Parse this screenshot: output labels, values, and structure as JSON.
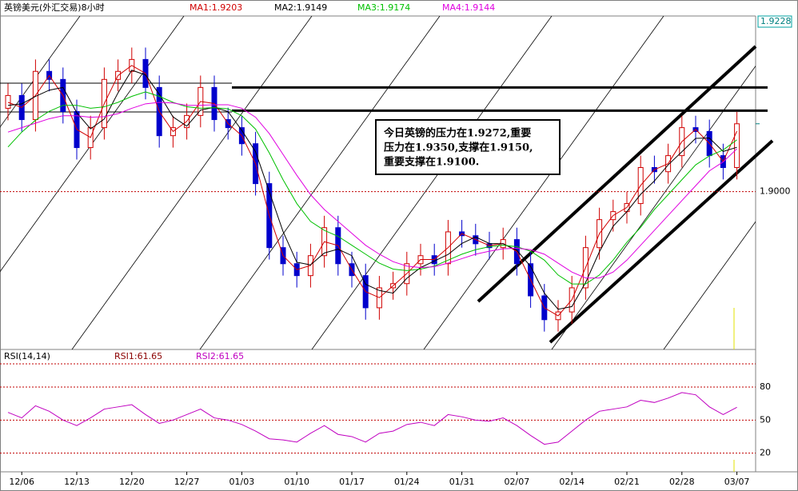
{
  "chart_data": [
    {
      "type": "candlestick",
      "title": "英镑美元(外汇交易)8小时",
      "categories": [
        null,
        "12/06",
        null,
        null,
        null,
        "12/13",
        null,
        null,
        null,
        "12/20",
        null,
        null,
        null,
        "12/27",
        null,
        null,
        null,
        "01/03",
        null,
        null,
        null,
        "01/10",
        null,
        null,
        null,
        "01/17",
        null,
        null,
        null,
        "01/24",
        null,
        null,
        null,
        "01/31",
        null,
        null,
        null,
        "02/07",
        null,
        null,
        null,
        "02/14",
        null,
        null,
        null,
        "02/21",
        null,
        null,
        null,
        "02/28",
        null,
        null,
        null,
        "03/07"
      ],
      "open": [
        1.928,
        1.9323,
        1.9242,
        1.9404,
        1.9377,
        1.9269,
        1.9148,
        1.9215,
        1.9377,
        1.9404,
        1.9444,
        1.935,
        1.9188,
        1.9215,
        1.9256,
        1.935,
        1.9242,
        1.9215,
        1.9161,
        1.9027,
        1.8812,
        1.8758,
        1.8718,
        1.8785,
        1.8879,
        1.8758,
        1.8718,
        1.861,
        1.8677,
        1.8691,
        1.8758,
        1.8785,
        1.8758,
        1.8865,
        1.8852,
        1.8825,
        1.8812,
        1.8839,
        1.8758,
        1.865,
        1.857,
        1.8596,
        1.8677,
        1.8812,
        1.8906,
        1.8933,
        1.896,
        1.9081,
        1.9067,
        1.9121,
        1.9215,
        1.9202,
        1.9121,
        1.9081
      ],
      "high": [
        1.9363,
        1.9363,
        1.9444,
        1.9444,
        1.9417,
        1.9309,
        1.9255,
        1.9417,
        1.9444,
        1.9484,
        1.9484,
        1.939,
        1.9255,
        1.9296,
        1.939,
        1.939,
        1.9282,
        1.9255,
        1.9201,
        1.9067,
        1.8852,
        1.8798,
        1.8825,
        1.8919,
        1.8919,
        1.8798,
        1.8758,
        1.8717,
        1.8731,
        1.8798,
        1.8825,
        1.8825,
        1.8905,
        1.8905,
        1.8892,
        1.8865,
        1.8879,
        1.8879,
        1.8798,
        1.869,
        1.8636,
        1.8717,
        1.8852,
        1.8946,
        1.8973,
        1.9,
        1.9121,
        1.9121,
        1.9161,
        1.9255,
        1.9255,
        1.9242,
        1.9161,
        1.9268
      ],
      "low": [
        1.924,
        1.9202,
        1.9202,
        1.9337,
        1.9229,
        1.9108,
        1.9108,
        1.9175,
        1.9337,
        1.9364,
        1.931,
        1.9148,
        1.9148,
        1.9175,
        1.9216,
        1.9202,
        1.9175,
        1.9121,
        1.8987,
        1.8772,
        1.8718,
        1.8678,
        1.8678,
        1.8745,
        1.8718,
        1.8678,
        1.857,
        1.857,
        1.8637,
        1.8651,
        1.8718,
        1.8718,
        1.8718,
        1.8812,
        1.8785,
        1.8772,
        1.8772,
        1.8718,
        1.861,
        1.853,
        1.853,
        1.8556,
        1.8637,
        1.8772,
        1.8866,
        1.8893,
        1.892,
        1.9027,
        1.9027,
        1.9081,
        1.9162,
        1.9081,
        1.9041,
        1.9041
      ],
      "close": [
        1.9323,
        1.9242,
        1.9404,
        1.9377,
        1.9269,
        1.9148,
        1.9215,
        1.9377,
        1.9404,
        1.9444,
        1.935,
        1.9188,
        1.9215,
        1.9256,
        1.935,
        1.9242,
        1.9215,
        1.9161,
        1.9027,
        1.8812,
        1.8758,
        1.8718,
        1.8785,
        1.8879,
        1.8758,
        1.8718,
        1.861,
        1.8677,
        1.8691,
        1.8758,
        1.8785,
        1.8758,
        1.8865,
        1.8852,
        1.8825,
        1.8812,
        1.8839,
        1.8758,
        1.865,
        1.857,
        1.8596,
        1.8677,
        1.8812,
        1.8906,
        1.8933,
        1.896,
        1.9081,
        1.9067,
        1.9121,
        1.9215,
        1.9202,
        1.9121,
        1.9081,
        1.9228
      ],
      "up_color": "#d00000",
      "down_color": "#0000cc",
      "series": [
        {
          "name": "MA1:1.9203",
          "color": "#d00000",
          "values": [
            1.93,
            1.9283,
            1.9323,
            1.939,
            1.9323,
            1.9209,
            1.9182,
            1.9296,
            1.939,
            1.9424,
            1.9397,
            1.9269,
            1.9202,
            1.9236,
            1.9303,
            1.9296,
            1.9229,
            1.9188,
            1.9094,
            1.892,
            1.8785,
            1.8738,
            1.8752,
            1.8832,
            1.8819,
            1.8738,
            1.8664,
            1.8644,
            1.8684,
            1.8725,
            1.8772,
            1.8772,
            1.8812,
            1.8859,
            1.8839,
            1.8819,
            1.8826,
            1.8799,
            1.8704,
            1.861,
            1.8583,
            1.8637,
            1.8745,
            1.8859,
            1.892,
            1.8947,
            1.9021,
            1.9074,
            1.9094,
            1.9168,
            1.9209,
            1.9162,
            1.9101,
            1.9203
          ]
        },
        {
          "name": "MA2:1.9149",
          "color": "#000000",
          "values": [
            1.929,
            1.9295,
            1.932,
            1.9341,
            1.935,
            1.9265,
            1.9211,
            1.9244,
            1.9332,
            1.9408,
            1.9392,
            1.9327,
            1.9251,
            1.922,
            1.9274,
            1.9283,
            1.9269,
            1.9206,
            1.9134,
            1.9,
            1.8866,
            1.8763,
            1.8754,
            1.8794,
            1.8807,
            1.8785,
            1.8689,
            1.8668,
            1.8659,
            1.8709,
            1.8745,
            1.8767,
            1.8789,
            1.8826,
            1.8848,
            1.8826,
            1.8825,
            1.8803,
            1.8749,
            1.8659,
            1.8605,
            1.8614,
            1.8695,
            1.8798,
            1.8884,
            1.8933,
            1.8991,
            1.9036,
            1.909,
            1.9134,
            1.9179,
            1.918,
            1.9135,
            1.9149
          ]
        },
        {
          "name": "MA3:1.9174",
          "color": "#00c000",
          "values": [
            1.915,
            1.92,
            1.924,
            1.927,
            1.929,
            1.929,
            1.928,
            1.9285,
            1.93,
            1.932,
            1.9335,
            1.932,
            1.93,
            1.9285,
            1.928,
            1.9282,
            1.9278,
            1.9255,
            1.921,
            1.913,
            1.904,
            1.896,
            1.89,
            1.887,
            1.885,
            1.882,
            1.879,
            1.876,
            1.874,
            1.8735,
            1.874,
            1.875,
            1.877,
            1.879,
            1.8805,
            1.8815,
            1.882,
            1.8815,
            1.88,
            1.877,
            1.872,
            1.869,
            1.869,
            1.872,
            1.877,
            1.883,
            1.888,
            1.894,
            1.899,
            1.904,
            1.909,
            1.912,
            1.914,
            1.9174
          ]
        },
        {
          "name": "MA4:1.9144",
          "color": "#e000e0",
          "values": [
            1.92,
            1.9215,
            1.923,
            1.9245,
            1.9255,
            1.9255,
            1.925,
            1.9252,
            1.9262,
            1.928,
            1.9295,
            1.93,
            1.9298,
            1.929,
            1.929,
            1.9292,
            1.9292,
            1.928,
            1.925,
            1.9195,
            1.9125,
            1.9055,
            1.899,
            1.894,
            1.89,
            1.886,
            1.882,
            1.879,
            1.8765,
            1.875,
            1.8745,
            1.8748,
            1.876,
            1.8775,
            1.879,
            1.88,
            1.8808,
            1.881,
            1.8805,
            1.879,
            1.876,
            1.873,
            1.871,
            1.871,
            1.873,
            1.877,
            1.882,
            1.887,
            1.892,
            1.897,
            1.902,
            1.907,
            1.91,
            1.9144
          ]
        }
      ],
      "ylim": [
        1.847,
        1.959
      ],
      "yticks": [
        {
          "value": 1.9,
          "label": "1.9000"
        }
      ],
      "last_price": {
        "value": 1.9228,
        "label": "1.9228"
      },
      "resistance_lines": [
        1.935,
        1.9272
      ],
      "annotation": [
        "今日英镑的压力在1.9272,重要",
        "压力在1.9350,支撑在1.9150,",
        "重要支撑在1.9100."
      ]
    },
    {
      "type": "line",
      "title": "RSI(14,14)",
      "label": "RSI1:61.65",
      "label_color": "#8b0000",
      "series": [
        {
          "name": "RSI2:61.65",
          "color": "#c000c0",
          "values": [
            57,
            52,
            63,
            58,
            50,
            45,
            52,
            60,
            62,
            64,
            55,
            47,
            50,
            55,
            60,
            52,
            50,
            46,
            40,
            33,
            32,
            30,
            38,
            45,
            37,
            35,
            30,
            38,
            40,
            46,
            48,
            45,
            55,
            53,
            50,
            49,
            52,
            45,
            36,
            28,
            30,
            40,
            50,
            58,
            60,
            62,
            68,
            66,
            70,
            75,
            73,
            62,
            55,
            61.65
          ]
        }
      ],
      "ylim": [
        3,
        112
      ],
      "yticks": [
        20,
        50,
        80
      ]
    }
  ]
}
